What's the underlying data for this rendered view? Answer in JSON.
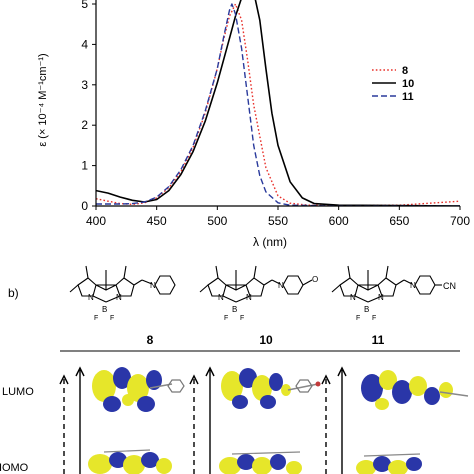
{
  "chart_data": {
    "type": "line",
    "xlabel": "λ (nm)",
    "ylabel": "ε (× 10⁻⁴ M⁻¹cm⁻¹)",
    "xlim": [
      400,
      700
    ],
    "ylim": [
      0,
      5
    ],
    "xticks": [
      400,
      450,
      500,
      550,
      600,
      650,
      700
    ],
    "yticks": [
      0,
      1,
      2,
      3,
      4,
      5
    ],
    "xtick_labels": [
      "400",
      "450",
      "500",
      "550",
      "600",
      "650",
      "700"
    ],
    "ytick_labels": [
      "0",
      "1",
      "2",
      "3",
      "4",
      "5"
    ],
    "grid": false,
    "legend": "top-right",
    "series": [
      {
        "name": "8",
        "color": "#e8302a",
        "style": "dotted",
        "x": [
          400,
          410,
          420,
          430,
          440,
          450,
          460,
          470,
          480,
          490,
          500,
          505,
          510,
          515,
          520,
          525,
          530,
          540,
          550,
          560,
          575,
          600,
          650,
          680,
          700
        ],
        "y": [
          0.18,
          0.12,
          0.06,
          0.04,
          0.08,
          0.2,
          0.45,
          0.85,
          1.45,
          2.3,
          3.4,
          4.1,
          4.7,
          5.0,
          4.6,
          3.6,
          2.5,
          0.95,
          0.25,
          0.07,
          0.02,
          0.01,
          0.02,
          0.08,
          0.12
        ]
      },
      {
        "name": "10",
        "color": "#000000",
        "style": "solid",
        "x": [
          400,
          410,
          420,
          430,
          440,
          450,
          460,
          470,
          480,
          490,
          500,
          505,
          510,
          515,
          520,
          525,
          528,
          530,
          535,
          540,
          545,
          550,
          560,
          570,
          580,
          600,
          650,
          700
        ],
        "y": [
          0.38,
          0.32,
          0.22,
          0.14,
          0.1,
          0.16,
          0.38,
          0.78,
          1.35,
          2.1,
          3.05,
          3.6,
          4.15,
          4.7,
          5.15,
          5.4,
          5.45,
          5.3,
          4.6,
          3.4,
          2.3,
          1.5,
          0.6,
          0.2,
          0.06,
          0.02,
          0.01,
          0.0
        ]
      },
      {
        "name": "11",
        "color": "#2a3a9c",
        "style": "dashed",
        "x": [
          400,
          410,
          420,
          430,
          440,
          450,
          460,
          470,
          480,
          490,
          500,
          505,
          510,
          512,
          515,
          520,
          525,
          530,
          535,
          540,
          550,
          560,
          600,
          700
        ],
        "y": [
          0.05,
          0.05,
          0.05,
          0.06,
          0.1,
          0.22,
          0.48,
          0.9,
          1.5,
          2.35,
          3.4,
          4.15,
          4.85,
          5.0,
          4.75,
          3.9,
          2.7,
          1.5,
          0.75,
          0.35,
          0.08,
          0.02,
          0.0,
          0.0
        ]
      }
    ]
  },
  "panel_b": {
    "label": "b)",
    "compounds": [
      {
        "id": "8",
        "substituent": ""
      },
      {
        "id": "10",
        "substituent": "O"
      },
      {
        "id": "11",
        "substituent": "CN"
      }
    ],
    "atoms": {
      "nitrogen": "N",
      "boron": "B",
      "fluorine": "F"
    },
    "orbitals": {
      "lumo": "LUMO",
      "homo": "HOMO"
    }
  }
}
